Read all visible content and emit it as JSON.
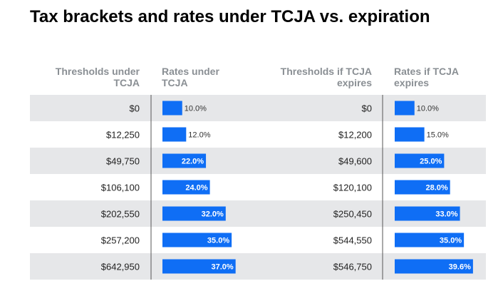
{
  "chart_data": {
    "type": "table",
    "title": "Tax brackets and rates under TCJA vs. expiration",
    "columns": [
      "Thresholds under TCJA",
      "Rates under TCJA",
      "Thresholds if TCJA expires",
      "Rates if TCJA expires"
    ],
    "rate_max": 40,
    "series": [
      {
        "thresholds": [
          "$0",
          "$12,250",
          "$49,750",
          "$106,100",
          "$202,550",
          "$257,200",
          "$642,950"
        ],
        "values": [
          10.0,
          12.0,
          22.0,
          24.0,
          32.0,
          35.0,
          37.0
        ],
        "labels": [
          "10.0%",
          "12.0%",
          "22.0%",
          "24.0%",
          "32.0%",
          "35.0%",
          "37.0%"
        ]
      },
      {
        "thresholds": [
          "$0",
          "$12,200",
          "$49,600",
          "$120,100",
          "$250,450",
          "$544,550",
          "$546,750"
        ],
        "values": [
          10.0,
          15.0,
          25.0,
          28.0,
          33.0,
          35.0,
          39.6
        ],
        "labels": [
          "10.0%",
          "15.0%",
          "25.0%",
          "28.0%",
          "33.0%",
          "35.0%",
          "39.6%"
        ]
      }
    ],
    "colors": {
      "bar": "#0f6ef5",
      "row_shade": "#e6e7e9",
      "row_plain": "#ffffff",
      "divider": "#555555",
      "header_text": "#8a8f94"
    }
  }
}
